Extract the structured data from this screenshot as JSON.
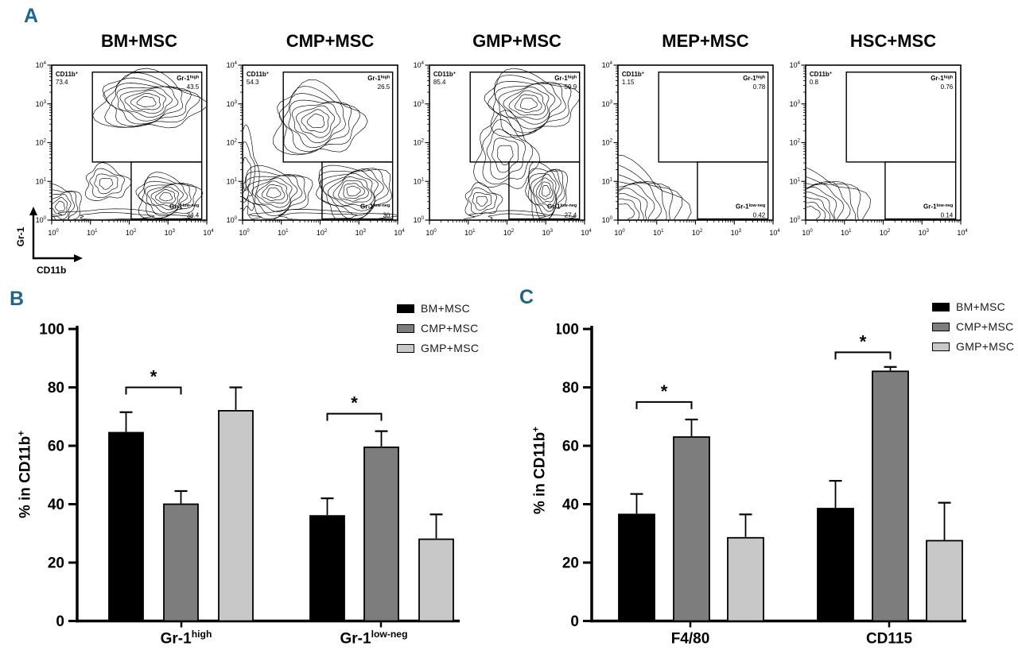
{
  "panel_a": {
    "label": "A",
    "x_axis_label": "CD11b",
    "y_axis_label": "Gr-1",
    "tick_base": "10",
    "tick_exponents": [
      "0",
      "1",
      "2",
      "3",
      "4"
    ],
    "quad_gate_label": "CD11b",
    "quad_gate_sup": "+",
    "high_gate_label": "Gr-1",
    "high_gate_sup": "high",
    "low_gate_label": "Gr-1",
    "low_gate_sup": "low-neg",
    "plots": [
      {
        "title": "BM+MSC",
        "cd11b_pos": "73.4",
        "gr1_high": "43.5",
        "gr1_low_neg": "34.4"
      },
      {
        "title": "CMP+MSC",
        "cd11b_pos": "54.3",
        "gr1_high": "26.5",
        "gr1_low_neg": "30"
      },
      {
        "title": "GMP+MSC",
        "cd11b_pos": "85.4",
        "gr1_high": "59.9",
        "gr1_low_neg": "27.4"
      },
      {
        "title": "MEP+MSC",
        "cd11b_pos": "1.15",
        "gr1_high": "0.78",
        "gr1_low_neg": "0.42"
      },
      {
        "title": "HSC+MSC",
        "cd11b_pos": "0.8",
        "gr1_high": "0.76",
        "gr1_low_neg": "0.14"
      }
    ]
  },
  "chart_data": [
    {
      "panel_label": "B",
      "type": "bar",
      "ylabel_base": "% in CD11b",
      "ylabel_sup": "+",
      "ylim": [
        0,
        100
      ],
      "yticks": [
        0,
        20,
        40,
        60,
        80,
        100
      ],
      "grid": false,
      "legend_position": "top-right",
      "categories": [
        {
          "base": "Gr-1",
          "sup": "high"
        },
        {
          "base": "Gr-1",
          "sup": "low-neg"
        }
      ],
      "series": [
        {
          "name": "BM+MSC",
          "color": "#000000",
          "values": [
            64.5,
            36
          ],
          "errors": [
            7,
            6
          ]
        },
        {
          "name": "CMP+MSC",
          "color": "#7d7d7d",
          "values": [
            40,
            59.5
          ],
          "errors": [
            4.5,
            5.5
          ]
        },
        {
          "name": "GMP+MSC",
          "color": "#c8c8c8",
          "values": [
            72,
            28
          ],
          "errors": [
            8,
            8.5
          ]
        }
      ],
      "significance": [
        {
          "category": 0,
          "series_from": 0,
          "series_to": 1,
          "height": 80,
          "label": "*"
        },
        {
          "category": 1,
          "series_from": 0,
          "series_to": 1,
          "height": 71,
          "label": "*"
        }
      ]
    },
    {
      "panel_label": "C",
      "type": "bar",
      "ylabel_base": "% in CD11b",
      "ylabel_sup": "+",
      "ylim": [
        0,
        100
      ],
      "yticks": [
        0,
        20,
        40,
        60,
        80,
        100
      ],
      "grid": false,
      "legend_position": "top-right",
      "categories": [
        {
          "base": "F4/80",
          "sup": ""
        },
        {
          "base": "CD115",
          "sup": ""
        }
      ],
      "series": [
        {
          "name": "BM+MSC",
          "color": "#000000",
          "values": [
            36.5,
            38.5
          ],
          "errors": [
            7,
            9.5
          ]
        },
        {
          "name": "CMP+MSC",
          "color": "#7d7d7d",
          "values": [
            63,
            85.5
          ],
          "errors": [
            6,
            1.5
          ]
        },
        {
          "name": "GMP+MSC",
          "color": "#c8c8c8",
          "values": [
            28.5,
            27.5
          ],
          "errors": [
            8,
            13
          ]
        }
      ],
      "significance": [
        {
          "category": 0,
          "series_from": 0,
          "series_to": 1,
          "height": 75,
          "label": "*"
        },
        {
          "category": 1,
          "series_from": 0,
          "series_to": 1,
          "height": 92,
          "label": "*"
        }
      ]
    }
  ],
  "legend": {
    "items": [
      {
        "label": "BM+MSC",
        "color": "#000000"
      },
      {
        "label": "CMP+MSC",
        "color": "#7d7d7d"
      },
      {
        "label": "GMP+MSC",
        "color": "#c8c8c8"
      }
    ]
  }
}
